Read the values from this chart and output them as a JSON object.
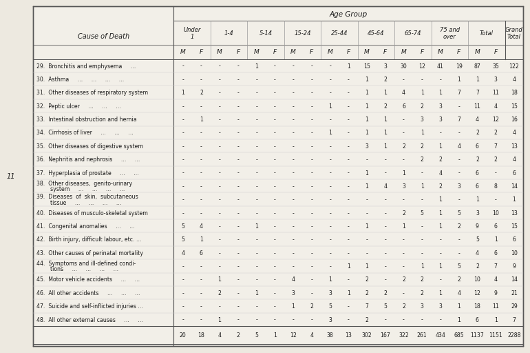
{
  "bg_color": "#ede9e0",
  "table_bg": "#f2efe8",
  "border_color": "#555555",
  "text_color": "#1a1a1a",
  "page_number": "11",
  "age_groups_info": [
    [
      "Under\n1",
      0,
      2
    ],
    [
      "1-4",
      2,
      4
    ],
    [
      "5-14",
      4,
      6
    ],
    [
      "15-24",
      6,
      8
    ],
    [
      "25-44",
      8,
      10
    ],
    [
      "45-64",
      10,
      12
    ],
    [
      "65-74",
      12,
      14
    ],
    [
      "75 and\nover",
      14,
      16
    ]
  ],
  "rows": [
    {
      "label": [
        "29.  Bronchitis and emphysema     ..."
      ],
      "data": [
        "-",
        "-",
        "-",
        "-",
        "1",
        "-",
        "-",
        "-",
        "-",
        "1",
        "15",
        "3",
        "30",
        "12",
        "41",
        "19",
        "87",
        "35",
        "122"
      ]
    },
    {
      "label": [
        "30.  Asthma     ...     ...     ...     ..."
      ],
      "data": [
        "-",
        "-",
        "-",
        "-",
        "-",
        "-",
        "-",
        "-",
        "-",
        "-",
        "1",
        "2",
        "-",
        "-",
        "-",
        "1",
        "1",
        "3",
        "4"
      ]
    },
    {
      "label": [
        "31.  Other diseases of respiratory system"
      ],
      "data": [
        "1",
        "2",
        "-",
        "-",
        "-",
        "-",
        "-",
        "-",
        "-",
        "-",
        "1",
        "1",
        "4",
        "1",
        "1",
        "7",
        "7",
        "11",
        "18"
      ]
    },
    {
      "label": [
        "32.  Peptic ulcer     ...     ...     ..."
      ],
      "data": [
        "-",
        "-",
        "-",
        "-",
        "-",
        "-",
        "-",
        "-",
        "1",
        "-",
        "1",
        "2",
        "6",
        "2",
        "3",
        "-",
        "11",
        "4",
        "15"
      ]
    },
    {
      "label": [
        "33.  Intestinal obstruction and hernia"
      ],
      "data": [
        "-",
        "1",
        "-",
        "-",
        "-",
        "-",
        "-",
        "-",
        "-",
        "-",
        "1",
        "1",
        "-",
        "3",
        "3",
        "7",
        "4",
        "12",
        "16"
      ]
    },
    {
      "label": [
        "34.  Cirrhosis of liver     ...     ...     ..."
      ],
      "data": [
        "-",
        "-",
        "-",
        "-",
        "-",
        "-",
        "-",
        "-",
        "1",
        "-",
        "1",
        "1",
        "-",
        "1",
        "-",
        "-",
        "2",
        "2",
        "4"
      ]
    },
    {
      "label": [
        "35.  Other diseases of digestive system"
      ],
      "data": [
        "-",
        "-",
        "-",
        "-",
        "-",
        "-",
        "-",
        "-",
        "-",
        "-",
        "3",
        "1",
        "2",
        "2",
        "1",
        "4",
        "6",
        "7",
        "13"
      ]
    },
    {
      "label": [
        "36.  Nephritis and nephrosis     ...     ..."
      ],
      "data": [
        "-",
        "-",
        "-",
        "-",
        "-",
        "-",
        "-",
        "-",
        "-",
        "-",
        "-",
        "-",
        "-",
        "2",
        "2",
        "-",
        "2",
        "2",
        "4"
      ]
    },
    {
      "label": [
        "37.  Hyperplasia of prostate     ...     ..."
      ],
      "data": [
        "-",
        "-",
        "-",
        "-",
        "-",
        "-",
        "-",
        "-",
        "-",
        "-",
        "1",
        "-",
        "1",
        "-",
        "4",
        "-",
        "6",
        "-",
        "6"
      ]
    },
    {
      "label": [
        "38.  Other diseases,  genito-urinary",
        "        system     ...     ...     ...     ..."
      ],
      "data": [
        "-",
        "-",
        "-",
        "-",
        "-",
        "-",
        "-",
        "-",
        "-",
        "-",
        "1",
        "4",
        "3",
        "1",
        "2",
        "3",
        "6",
        "8",
        "14"
      ]
    },
    {
      "label": [
        "39.  Diseases  of  skin,  subcutaneous",
        "        tissue     ...     ...     ...     ..."
      ],
      "data": [
        "-",
        "-",
        "-",
        "-",
        "-",
        "-",
        "-",
        "-",
        "-",
        "-",
        "-",
        "-",
        "-",
        "-",
        "1",
        "-",
        "1",
        "-",
        "1"
      ]
    },
    {
      "label": [
        "40.  Diseases of musculo-skeletal system"
      ],
      "data": [
        "-",
        "-",
        "-",
        "-",
        "-",
        "-",
        "-",
        "-",
        "-",
        "-",
        "-",
        "-",
        "2",
        "5",
        "1",
        "5",
        "3",
        "10",
        "13"
      ]
    },
    {
      "label": [
        "41.  Congenital anomalies     ...     ..."
      ],
      "data": [
        "5",
        "4",
        "-",
        "-",
        "1",
        "-",
        "-",
        "-",
        "-",
        "-",
        "1",
        "-",
        "1",
        "-",
        "1",
        "2",
        "9",
        "6",
        "15"
      ]
    },
    {
      "label": [
        "42.  Birth injury, difficult labour, etc. ..."
      ],
      "data": [
        "5",
        "1",
        "-",
        "-",
        "-",
        "-",
        "-",
        "-",
        "-",
        "-",
        "-",
        "-",
        "-",
        "-",
        "-",
        "-",
        "5",
        "1",
        "6"
      ]
    },
    {
      "label": [
        "43.  Other causes of perinatal mortality"
      ],
      "data": [
        "4",
        "6",
        "-",
        "-",
        "-",
        "-",
        "-",
        "-",
        "-",
        "-",
        "-",
        "-",
        "-",
        "-",
        "-",
        "-",
        "4",
        "6",
        "10"
      ]
    },
    {
      "label": [
        "44.  Symptoms and ill-defined condi-",
        "        tions     ...     ...     ...     ..."
      ],
      "data": [
        "-",
        "-",
        "-",
        "-",
        "-",
        "-",
        "-",
        "-",
        "-",
        "1",
        "1",
        "-",
        "-",
        "1",
        "1",
        "5",
        "2",
        "7",
        "9"
      ]
    },
    {
      "label": [
        "45.  Motor vehicle accidents     ...     ..."
      ],
      "data": [
        "-",
        "-",
        "1",
        "-",
        "-",
        "-",
        "4",
        "-",
        "1",
        "-",
        "2",
        "-",
        "2",
        "2",
        "-",
        "2",
        "10",
        "4",
        "14"
      ]
    },
    {
      "label": [
        "46.  All other accidents     ...     ...     ..."
      ],
      "data": [
        "-",
        "-",
        "2",
        "-",
        "1",
        "-",
        "3",
        "-",
        "3",
        "1",
        "2",
        "2",
        "-",
        "2",
        "1",
        "4",
        "12",
        "9",
        "21"
      ]
    },
    {
      "label": [
        "47.  Suicide and self-inflicted injuries ..."
      ],
      "data": [
        "-",
        "-",
        "-",
        "-",
        "-",
        "-",
        "1",
        "2",
        "5",
        "-",
        "7",
        "5",
        "2",
        "3",
        "3",
        "1",
        "18",
        "11",
        "29"
      ]
    },
    {
      "label": [
        "48.  All other external causes     ...     ..."
      ],
      "data": [
        "-",
        "-",
        "1",
        "-",
        "-",
        "-",
        "-",
        "-",
        "3",
        "-",
        "2",
        "-",
        "-",
        "-",
        "-",
        "1",
        "6",
        "1",
        "7"
      ]
    }
  ],
  "totals": [
    "20",
    "18",
    "4",
    "2",
    "5",
    "1",
    "12",
    "4",
    "38",
    "13",
    "302",
    "167",
    "322",
    "261",
    "434",
    "685",
    "1137",
    "1151",
    "2288"
  ]
}
